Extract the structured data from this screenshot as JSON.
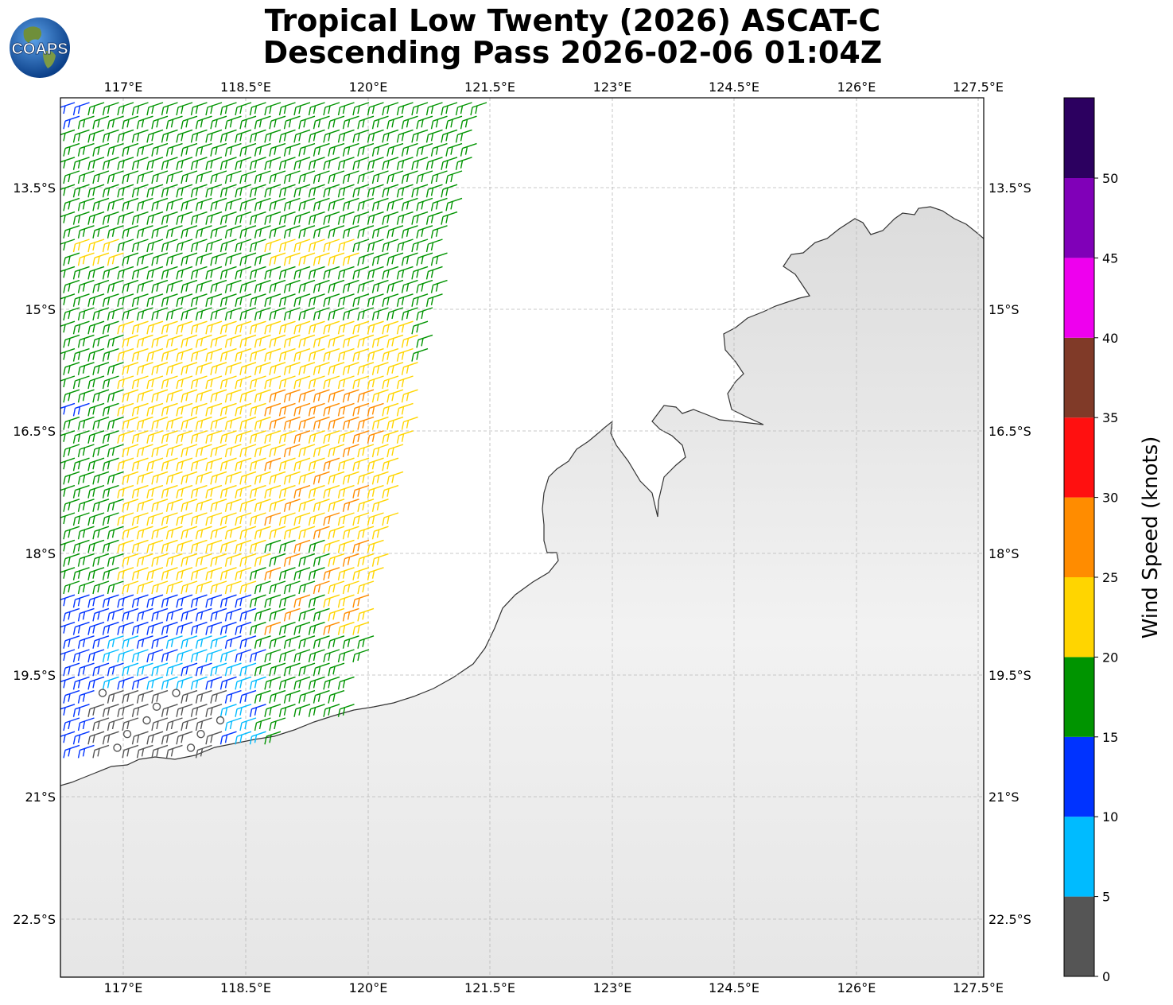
{
  "title_line1": "Tropical Low Twenty (2026) ASCAT-C",
  "title_line2": "Descending Pass 2026-02-06 01:04Z",
  "logo_text": "COAPS",
  "lon_ticks": [
    "117°E",
    "118.5°E",
    "120°E",
    "121.5°E",
    "123°E",
    "124.5°E",
    "126°E",
    "127.5°E"
  ],
  "lat_ticks": [
    "13.5°S",
    "15°S",
    "16.5°S",
    "18°S",
    "19.5°S",
    "21°S",
    "22.5°S"
  ],
  "colorbar": {
    "label": "Wind Speed (knots)",
    "ticks": [
      "0",
      "5",
      "10",
      "15",
      "20",
      "25",
      "30",
      "35",
      "40",
      "45",
      "50"
    ],
    "colors": [
      "#555555",
      "#00bbff",
      "#0033ff",
      "#009400",
      "#ffd500",
      "#ff8c00",
      "#ff1010",
      "#803a28",
      "#ee00ee",
      "#8000b8",
      "#2c0060"
    ]
  },
  "chart_data": {
    "type": "map-wind-barbs",
    "lon_range": [
      116.2,
      127.6
    ],
    "lat_range": [
      -23.2,
      -12.4
    ]
  }
}
